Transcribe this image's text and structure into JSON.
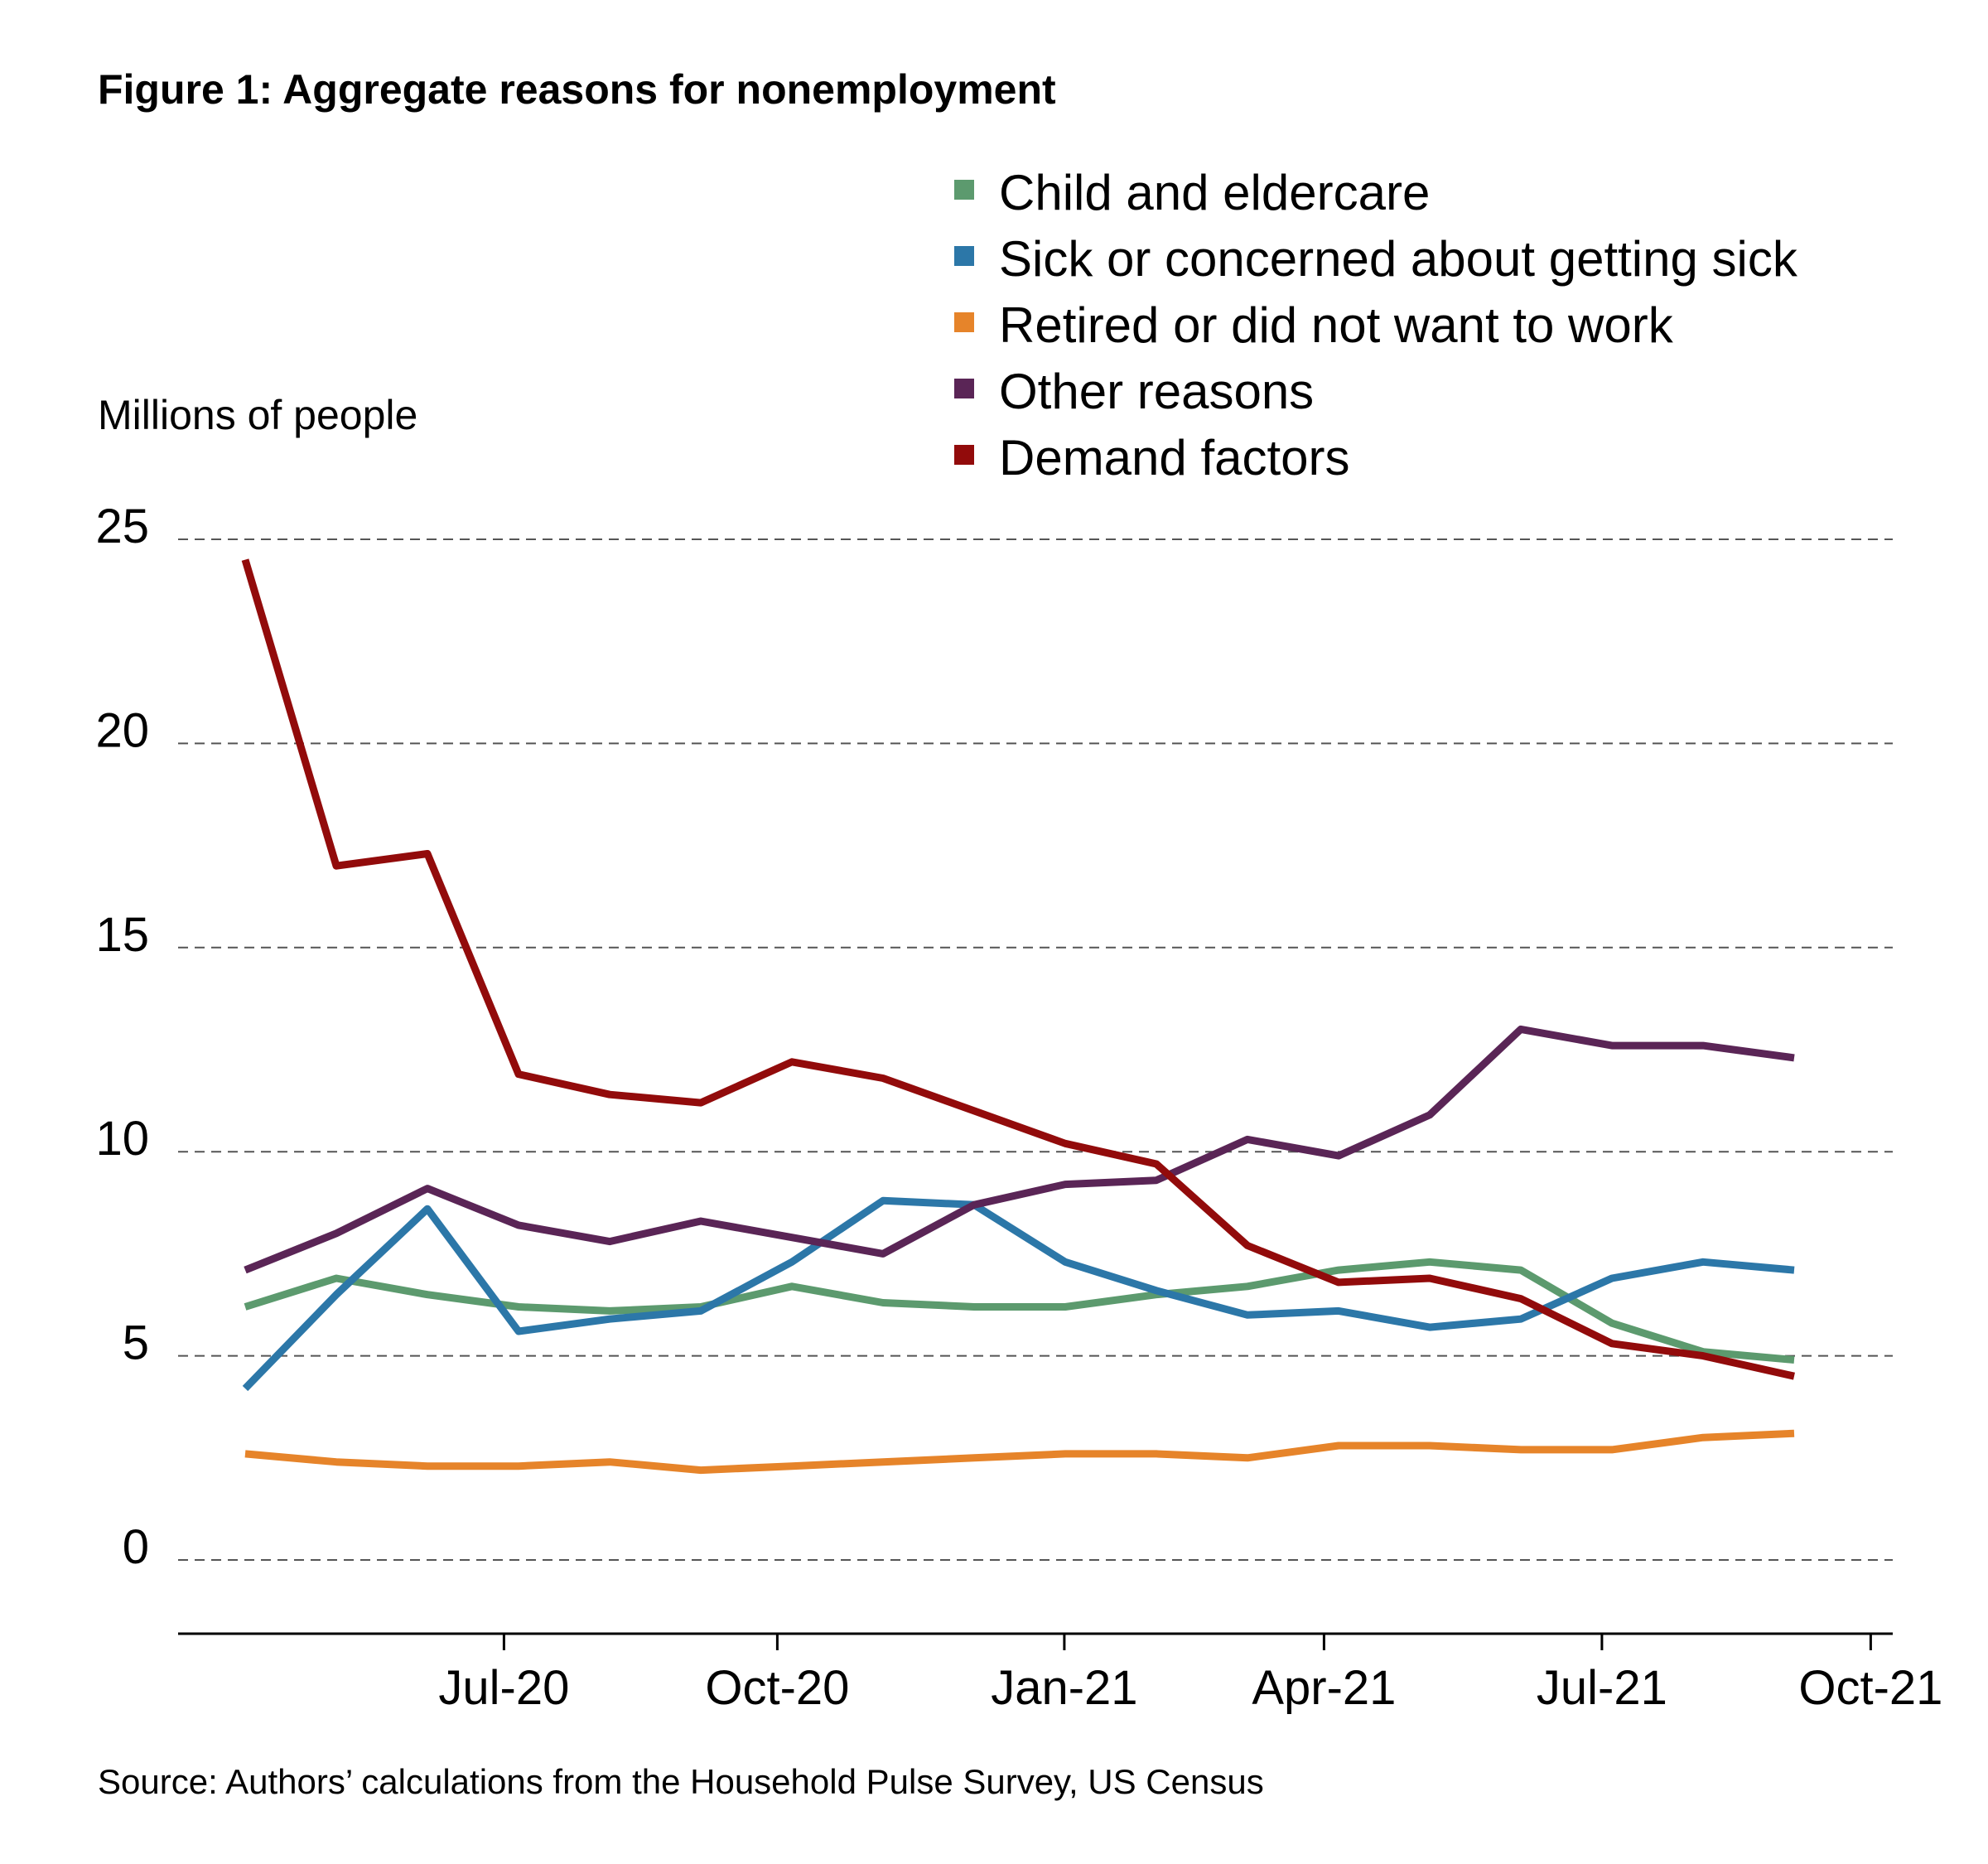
{
  "chart_data": {
    "type": "line",
    "title": "Figure 1: Aggregate reasons for nonemployment",
    "ylabel": "Millions of people",
    "source": "Source: Authors’ calculations from the Household Pulse Survey, US Census",
    "ylim": [
      -1.8,
      25
    ],
    "yticks": [
      0,
      5,
      10,
      15,
      20,
      25
    ],
    "grid": "horizontal-dashed",
    "legend_position": "top-right",
    "xticks": [
      {
        "label": "Jul-20",
        "x": 6.1
      },
      {
        "label": "Oct-20",
        "x": 9.1
      },
      {
        "label": "Jan-21",
        "x": 12.25
      },
      {
        "label": "Apr-21",
        "x": 15.1
      },
      {
        "label": "Jul-21",
        "x": 18.15
      },
      {
        "label": "Oct-21",
        "x": 21.1
      }
    ],
    "x": [
      3.26,
      4.26,
      5.26,
      6.26,
      7.26,
      8.26,
      9.26,
      10.26,
      11.26,
      12.26,
      13.26,
      14.26,
      15.26,
      16.26,
      17.26,
      18.26,
      19.26,
      20.26
    ],
    "series": [
      {
        "name": "Child and eldercare",
        "color": "#5c9a6e",
        "values": [
          6.2,
          6.9,
          6.5,
          6.2,
          6.1,
          6.2,
          6.7,
          6.3,
          6.2,
          6.2,
          6.5,
          6.7,
          7.1,
          7.3,
          7.1,
          5.8,
          5.1,
          4.9
        ]
      },
      {
        "name": "Sick or concerned about getting sick",
        "color": "#2c77a8",
        "values": [
          4.2,
          6.5,
          8.6,
          5.6,
          5.9,
          6.1,
          7.3,
          8.8,
          8.7,
          7.3,
          6.6,
          6.0,
          6.1,
          5.7,
          5.9,
          6.9,
          7.3,
          7.1
        ]
      },
      {
        "name": "Retired or did not want to work",
        "color": "#e6842a",
        "values": [
          2.6,
          2.4,
          2.3,
          2.3,
          2.4,
          2.2,
          2.3,
          2.4,
          2.5,
          2.6,
          2.6,
          2.5,
          2.8,
          2.8,
          2.7,
          2.7,
          3.0,
          3.1
        ]
      },
      {
        "name": "Other reasons",
        "color": "#5a2556",
        "values": [
          7.1,
          8.0,
          9.1,
          8.2,
          7.8,
          8.3,
          7.9,
          7.5,
          8.7,
          9.2,
          9.3,
          10.3,
          9.9,
          10.9,
          13.0,
          12.6,
          12.6,
          12.3
        ]
      },
      {
        "name": "Demand factors",
        "color": "#920b0b",
        "values": [
          24.5,
          17.0,
          17.3,
          11.9,
          11.4,
          11.2,
          12.2,
          11.8,
          11.0,
          10.2,
          9.7,
          7.7,
          6.8,
          6.9,
          6.4,
          5.3,
          5.0,
          4.5
        ]
      }
    ]
  }
}
